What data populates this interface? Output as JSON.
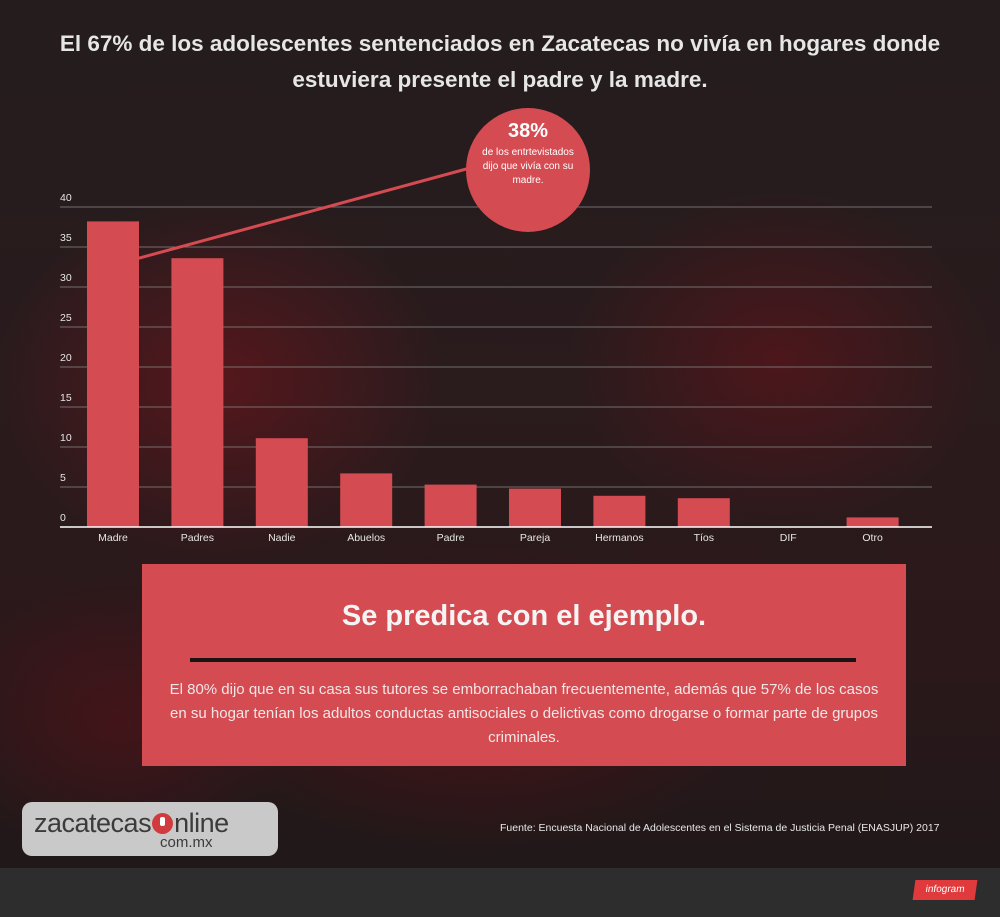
{
  "title": "El 67% de los adolescentes sentenciados  en Zacatecas no vivía en hogares donde estuviera presente el padre y la madre.",
  "callout": {
    "value": "38%",
    "text": "de los entrtevistados dijo que vivía con su madre."
  },
  "panel": {
    "heading": "Se predica con el ejemplo.",
    "body": "El 80% dijo que en su casa sus tutores se emborrachaban frecuentemente, además que 57% de los casos en su hogar tenían los adultos conductas antisociales o delictivas como drogarse o formar parte de grupos criminales."
  },
  "logo": {
    "word_a": "zacatecas",
    "word_b": "nline",
    "domain": "com.mx"
  },
  "source": "Fuente: Encuesta Nacional de Adolescentes en el Sistema de Justicia Penal (ENASJUP) 2017",
  "footer": {
    "badge": "infogram"
  },
  "colors": {
    "bar": "#d44b51",
    "grid": "#8a8a8a",
    "axis": "#ffffff",
    "text": "#e6e6e6"
  },
  "chart_data": {
    "type": "bar",
    "categories": [
      "Madre",
      "Padres",
      "Nadie",
      "Abuelos",
      "Padre",
      "Pareja",
      "Hermanos",
      "Tíos",
      "DIF",
      "Otro"
    ],
    "values": [
      38.2,
      33.6,
      11.1,
      6.7,
      5.3,
      4.8,
      3.9,
      3.6,
      0,
      1.2
    ],
    "yticks": [
      0,
      5,
      10,
      15,
      20,
      25,
      30,
      35,
      40
    ],
    "ylim": [
      0,
      40
    ],
    "grid": true,
    "xlabel": "",
    "ylabel": ""
  }
}
